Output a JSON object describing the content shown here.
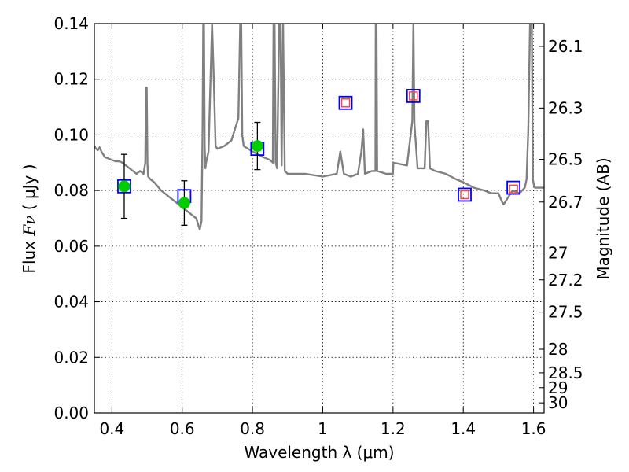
{
  "chart_data": {
    "type": "scatter",
    "xlabel": "Wavelength  λ (μm)",
    "ylabel_left_prefix": "Flux  ",
    "ylabel_left_symbol": "Fν",
    "ylabel_left_unit": " ( μJy )",
    "ylabel_right": "Magnitude (AB)",
    "xlim": [
      0.35,
      1.63
    ],
    "ylim": [
      0.0,
      0.14
    ],
    "grid": true,
    "x_ticks": [
      {
        "value": 0.4,
        "label": "0.4"
      },
      {
        "value": 0.6,
        "label": "0.6"
      },
      {
        "value": 0.8,
        "label": "0.8"
      },
      {
        "value": 1.0,
        "label": "1"
      },
      {
        "value": 1.2,
        "label": "1.2"
      },
      {
        "value": 1.4,
        "label": "1.4"
      },
      {
        "value": 1.6,
        "label": "1.6"
      }
    ],
    "y_ticks": [
      {
        "value": 0.0,
        "label": "0.00"
      },
      {
        "value": 0.02,
        "label": "0.02"
      },
      {
        "value": 0.04,
        "label": "0.04"
      },
      {
        "value": 0.06,
        "label": "0.06"
      },
      {
        "value": 0.08,
        "label": "0.08"
      },
      {
        "value": 0.1,
        "label": "0.10"
      },
      {
        "value": 0.12,
        "label": "0.12"
      },
      {
        "value": 0.14,
        "label": "0.14"
      }
    ],
    "right_ticks": [
      {
        "mag": 26.1,
        "label": "26.1"
      },
      {
        "mag": 26.3,
        "label": "26.3"
      },
      {
        "mag": 26.5,
        "label": "26.5"
      },
      {
        "mag": 26.7,
        "label": "26.7"
      },
      {
        "mag": 27.0,
        "label": "27"
      },
      {
        "mag": 27.2,
        "label": "27.2"
      },
      {
        "mag": 27.5,
        "label": "27.5"
      },
      {
        "mag": 28.0,
        "label": "28"
      },
      {
        "mag": 28.5,
        "label": "28.5"
      },
      {
        "mag": 29.0,
        "label": "29"
      },
      {
        "mag": 30.0,
        "label": "30"
      }
    ],
    "colors": {
      "template": "#808080",
      "observed": "#00cc00",
      "model_box": "#0000ff",
      "predicted_box": "#ff4444",
      "errorbar": "#000000",
      "grid": "#000000"
    },
    "template_spectrum": {
      "x": [
        0.35,
        0.355,
        0.36,
        0.365,
        0.37,
        0.375,
        0.38,
        0.39,
        0.4,
        0.41,
        0.42,
        0.43,
        0.44,
        0.45,
        0.46,
        0.47,
        0.48,
        0.49,
        0.495,
        0.497,
        0.499,
        0.501,
        0.503,
        0.51,
        0.52,
        0.54,
        0.56,
        0.58,
        0.6,
        0.62,
        0.63,
        0.64,
        0.645,
        0.65,
        0.655,
        0.658,
        0.66,
        0.662,
        0.664,
        0.666,
        0.668,
        0.675,
        0.685,
        0.69,
        0.695,
        0.7,
        0.72,
        0.74,
        0.76,
        0.765,
        0.768,
        0.771,
        0.775,
        0.8,
        0.83,
        0.85,
        0.858,
        0.86,
        0.863,
        0.866,
        0.87,
        0.876,
        0.88,
        0.883,
        0.887,
        0.892,
        0.9,
        0.95,
        1.0,
        1.04,
        1.05,
        1.06,
        1.08,
        1.1,
        1.11,
        1.115,
        1.12,
        1.14,
        1.15,
        1.151,
        1.153,
        1.155,
        1.18,
        1.2,
        1.201,
        1.24,
        1.255,
        1.258,
        1.261,
        1.27,
        1.29,
        1.295,
        1.3,
        1.305,
        1.32,
        1.35,
        1.38,
        1.4,
        1.43,
        1.46,
        1.48,
        1.5,
        1.51,
        1.515,
        1.52,
        1.54,
        1.56,
        1.575,
        1.58,
        1.585,
        1.59,
        1.595,
        1.598,
        1.601,
        1.604,
        1.63
      ],
      "y": [
        0.096,
        0.095,
        0.0945,
        0.0955,
        0.094,
        0.093,
        0.092,
        0.0915,
        0.091,
        0.0905,
        0.0905,
        0.09,
        0.089,
        0.088,
        0.087,
        0.086,
        0.087,
        0.086,
        0.09,
        0.117,
        0.117,
        0.09,
        0.085,
        0.084,
        0.083,
        0.08,
        0.078,
        0.076,
        0.074,
        0.072,
        0.071,
        0.07,
        0.068,
        0.066,
        0.069,
        0.1,
        0.14,
        0.14,
        0.096,
        0.088,
        0.09,
        0.094,
        0.14,
        0.12,
        0.096,
        0.095,
        0.096,
        0.098,
        0.106,
        0.14,
        0.14,
        0.1,
        0.096,
        0.094,
        0.092,
        0.091,
        0.09,
        0.14,
        0.14,
        0.09,
        0.088,
        0.14,
        0.14,
        0.089,
        0.14,
        0.087,
        0.086,
        0.086,
        0.085,
        0.086,
        0.094,
        0.086,
        0.085,
        0.086,
        0.094,
        0.102,
        0.086,
        0.087,
        0.087,
        0.14,
        0.14,
        0.087,
        0.086,
        0.086,
        0.09,
        0.089,
        0.105,
        0.14,
        0.104,
        0.088,
        0.088,
        0.105,
        0.105,
        0.088,
        0.087,
        0.086,
        0.084,
        0.083,
        0.081,
        0.08,
        0.079,
        0.079,
        0.076,
        0.075,
        0.076,
        0.08,
        0.079,
        0.081,
        0.084,
        0.102,
        0.14,
        0.14,
        0.084,
        0.082,
        0.081,
        0.081
      ]
    },
    "observed": [
      {
        "x": 0.435,
        "y": 0.0815,
        "err": 0.0115
      },
      {
        "x": 0.606,
        "y": 0.0755,
        "err": 0.008
      },
      {
        "x": 0.814,
        "y": 0.096,
        "err": 0.0085
      }
    ],
    "model_points": [
      {
        "x": 0.435,
        "y": 0.0815
      },
      {
        "x": 0.606,
        "y": 0.078
      },
      {
        "x": 0.814,
        "y": 0.095
      },
      {
        "x": 1.065,
        "y": 0.1115
      },
      {
        "x": 1.258,
        "y": 0.114
      },
      {
        "x": 1.404,
        "y": 0.0785
      },
      {
        "x": 1.543,
        "y": 0.081
      }
    ],
    "predicted_points": [
      {
        "x": 1.065,
        "y": 0.1115
      },
      {
        "x": 1.258,
        "y": 0.114
      },
      {
        "x": 1.404,
        "y": 0.0785
      },
      {
        "x": 1.543,
        "y": 0.0805
      }
    ]
  }
}
